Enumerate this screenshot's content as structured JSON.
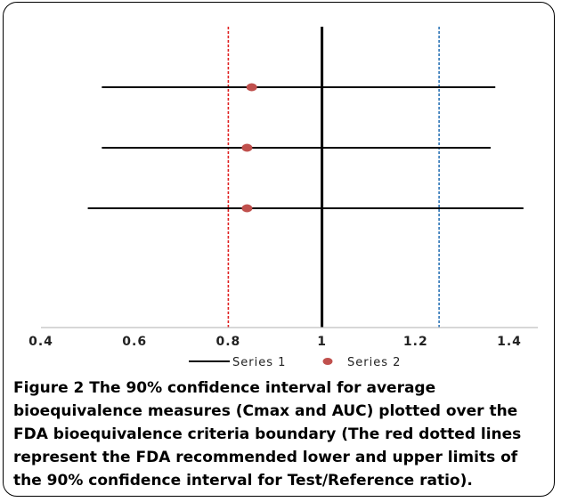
{
  "chart_data": {
    "type": "forest",
    "xlim": [
      0.4,
      1.45
    ],
    "x_ticks": [
      "0.4",
      "0.6",
      "0.8",
      "1",
      "1.2",
      "1.4"
    ],
    "series": [
      {
        "name": "Series 1",
        "kind": "interval",
        "color": "#000000",
        "intervals": [
          {
            "low": 0.53,
            "high": 1.37
          },
          {
            "low": 0.53,
            "high": 1.36
          },
          {
            "low": 0.5,
            "high": 1.43
          }
        ]
      },
      {
        "name": "Series 2",
        "kind": "point",
        "color": "#c0504d",
        "points": [
          0.85,
          0.84,
          0.84
        ]
      }
    ],
    "reference_lines": [
      {
        "x": 0.8,
        "color": "#e02020",
        "style": "dotted"
      },
      {
        "x": 1.0,
        "color": "#000000",
        "style": "solid"
      },
      {
        "x": 1.25,
        "color": "#2e75b6",
        "style": "dotted"
      }
    ],
    "legend_position": "bottom",
    "grid": false
  },
  "caption": {
    "label": "Figure 2",
    "text": " The 90% confidence interval for average bioequivalence measures (Cmax and AUC) plotted over the FDA bioequivalence criteria boundary (The red dotted lines represent the FDA recommended lower and upper limits of the 90% confidence interval for Test/Reference ratio)."
  }
}
